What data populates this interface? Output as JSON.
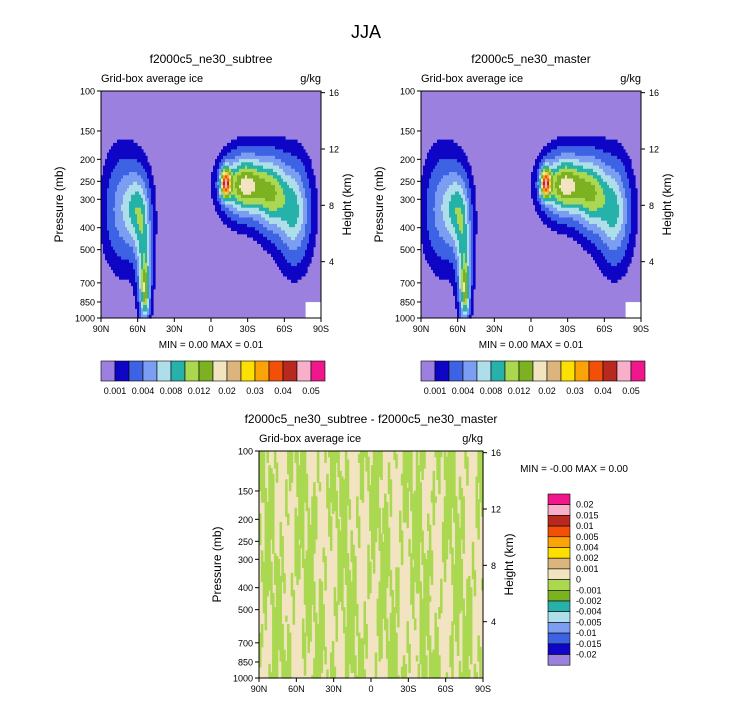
{
  "page_title": "JJA",
  "colors": {
    "cmap": [
      "#9b80e0",
      "#0f05c4",
      "#3e62e4",
      "#7c9ef2",
      "#aedeea",
      "#26b2aa",
      "#aad851",
      "#7cb221",
      "#f2e4c0",
      "#dcb47e",
      "#fde000",
      "#fca308",
      "#f24f09",
      "#b8281e",
      "#f7afca",
      "#f0178c"
    ],
    "cmap_diff": [
      "#9b80e0",
      "#0f05c4",
      "#3e62e4",
      "#7c9ef2",
      "#aedeea",
      "#26b2aa",
      "#7cb221",
      "#aad851",
      "#f2e4c0",
      "#dcb47e",
      "#fde000",
      "#fca308",
      "#f24f09",
      "#b8281e",
      "#f7afca",
      "#f0178c"
    ]
  },
  "chart_data": [
    {
      "type": "contour",
      "title": "f2000c5_ne30_subtree",
      "left_label": "Grid-box average ice",
      "right_label": "g/kg",
      "xlabel": "",
      "ylabel": "Pressure (mb)",
      "y2label": "Height (km)",
      "xticks": [
        "90N",
        "60N",
        "30N",
        "0",
        "30S",
        "60S",
        "90S"
      ],
      "yticks": [
        "100",
        "150",
        "200",
        "250",
        "300",
        "400",
        "500",
        "700",
        "850",
        "1000"
      ],
      "y2ticks": [
        "16",
        "12",
        "8",
        "4"
      ],
      "stats": "MIN =   0.00  MAX =  0.01",
      "levels": [
        "0.001",
        "0.004",
        "0.008",
        "0.012",
        "0.02",
        "0.03",
        "0.04",
        "0.05"
      ],
      "features": [
        {
          "lat": -12,
          "p": 250,
          "peak": 11
        },
        {
          "lat": -45,
          "p": 270,
          "peak": 7
        },
        {
          "lat": 55,
          "p": 680,
          "peak": 6
        },
        {
          "lat": 60,
          "p": 350,
          "peak": 4
        }
      ]
    },
    {
      "type": "contour",
      "title": "f2000c5_ne30_master",
      "left_label": "Grid-box average ice",
      "right_label": "g/kg",
      "xlabel": "",
      "ylabel": "Pressure (mb)",
      "y2label": "Height (km)",
      "xticks": [
        "90N",
        "60N",
        "30N",
        "0",
        "30S",
        "60S",
        "90S"
      ],
      "yticks": [
        "100",
        "150",
        "200",
        "250",
        "300",
        "400",
        "500",
        "700",
        "850",
        "1000"
      ],
      "y2ticks": [
        "16",
        "12",
        "8",
        "4"
      ],
      "stats": "MIN =   0.00  MAX =  0.01",
      "levels": [
        "0.001",
        "0.004",
        "0.008",
        "0.012",
        "0.02",
        "0.03",
        "0.04",
        "0.05"
      ],
      "features": [
        {
          "lat": -12,
          "p": 250,
          "peak": 11
        },
        {
          "lat": -45,
          "p": 270,
          "peak": 7
        },
        {
          "lat": 55,
          "p": 680,
          "peak": 6
        },
        {
          "lat": 60,
          "p": 350,
          "peak": 4
        }
      ]
    },
    {
      "type": "contour",
      "title": "f2000c5_ne30_subtree - f2000c5_ne30_master",
      "left_label": "Grid-box average ice",
      "right_label": "g/kg",
      "xlabel": "",
      "ylabel": "Pressure (mb)",
      "y2label": "Height (km)",
      "xticks": [
        "90N",
        "60N",
        "30N",
        "0",
        "30S",
        "60S",
        "90S"
      ],
      "yticks": [
        "100",
        "150",
        "200",
        "250",
        "300",
        "400",
        "500",
        "700",
        "850",
        "1000"
      ],
      "y2ticks": [
        "16",
        "12",
        "8",
        "4"
      ],
      "stats": "MIN =  -0.00  MAX =   0.00",
      "levels": [
        "0.02",
        "0.015",
        "0.01",
        "0.005",
        "0.004",
        "0.002",
        "0.001",
        "0",
        "-0.001",
        "-0.002",
        "-0.004",
        "-0.005",
        "-0.01",
        "-0.015",
        "-0.02"
      ],
      "fill_colors": [
        "#f2e4c0",
        "#aad851"
      ]
    }
  ]
}
